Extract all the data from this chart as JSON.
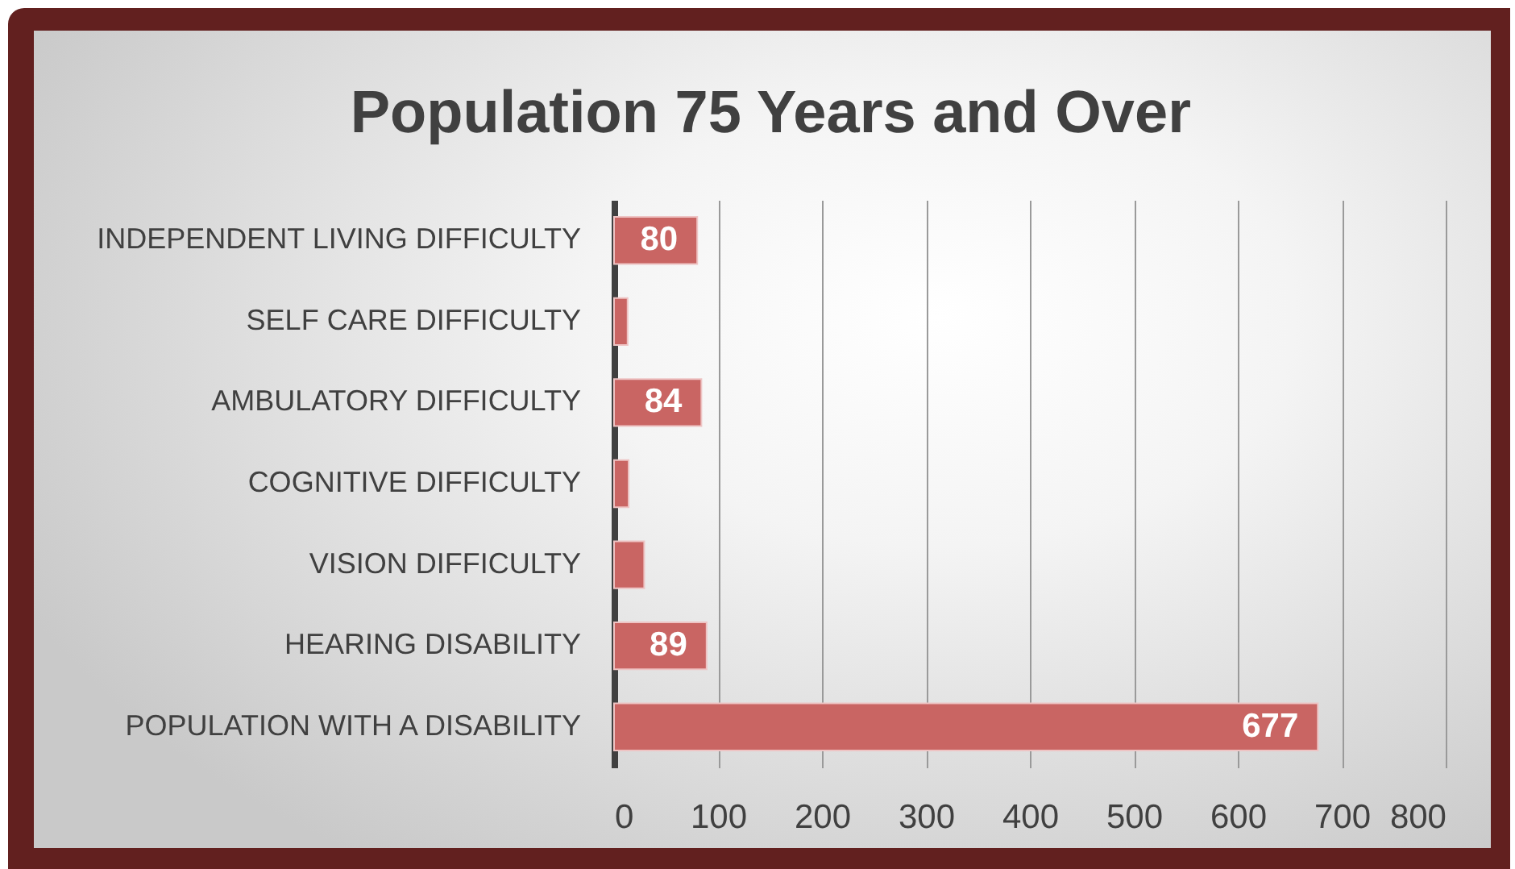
{
  "chart_data": {
    "type": "bar",
    "orientation": "horizontal",
    "title": "Population 75 Years and Over",
    "categories": [
      "INDEPENDENT LIVING DIFFICULTY",
      "SELF CARE DIFFICULTY",
      "AMBULATORY DIFFICULTY",
      "COGNITIVE DIFFICULTY",
      "VISION DIFFICULTY",
      "HEARING DISABILITY",
      "POPULATION WITH A DISABILITY"
    ],
    "values": [
      80,
      13,
      84,
      14,
      29,
      89,
      677
    ],
    "value_labels": [
      "80",
      null,
      "84",
      null,
      null,
      "89",
      "677"
    ],
    "color": "#c96563",
    "xlim": [
      0,
      800
    ],
    "xticks": [
      0,
      100,
      200,
      300,
      400,
      500,
      600,
      700,
      800
    ],
    "grid": "x"
  }
}
